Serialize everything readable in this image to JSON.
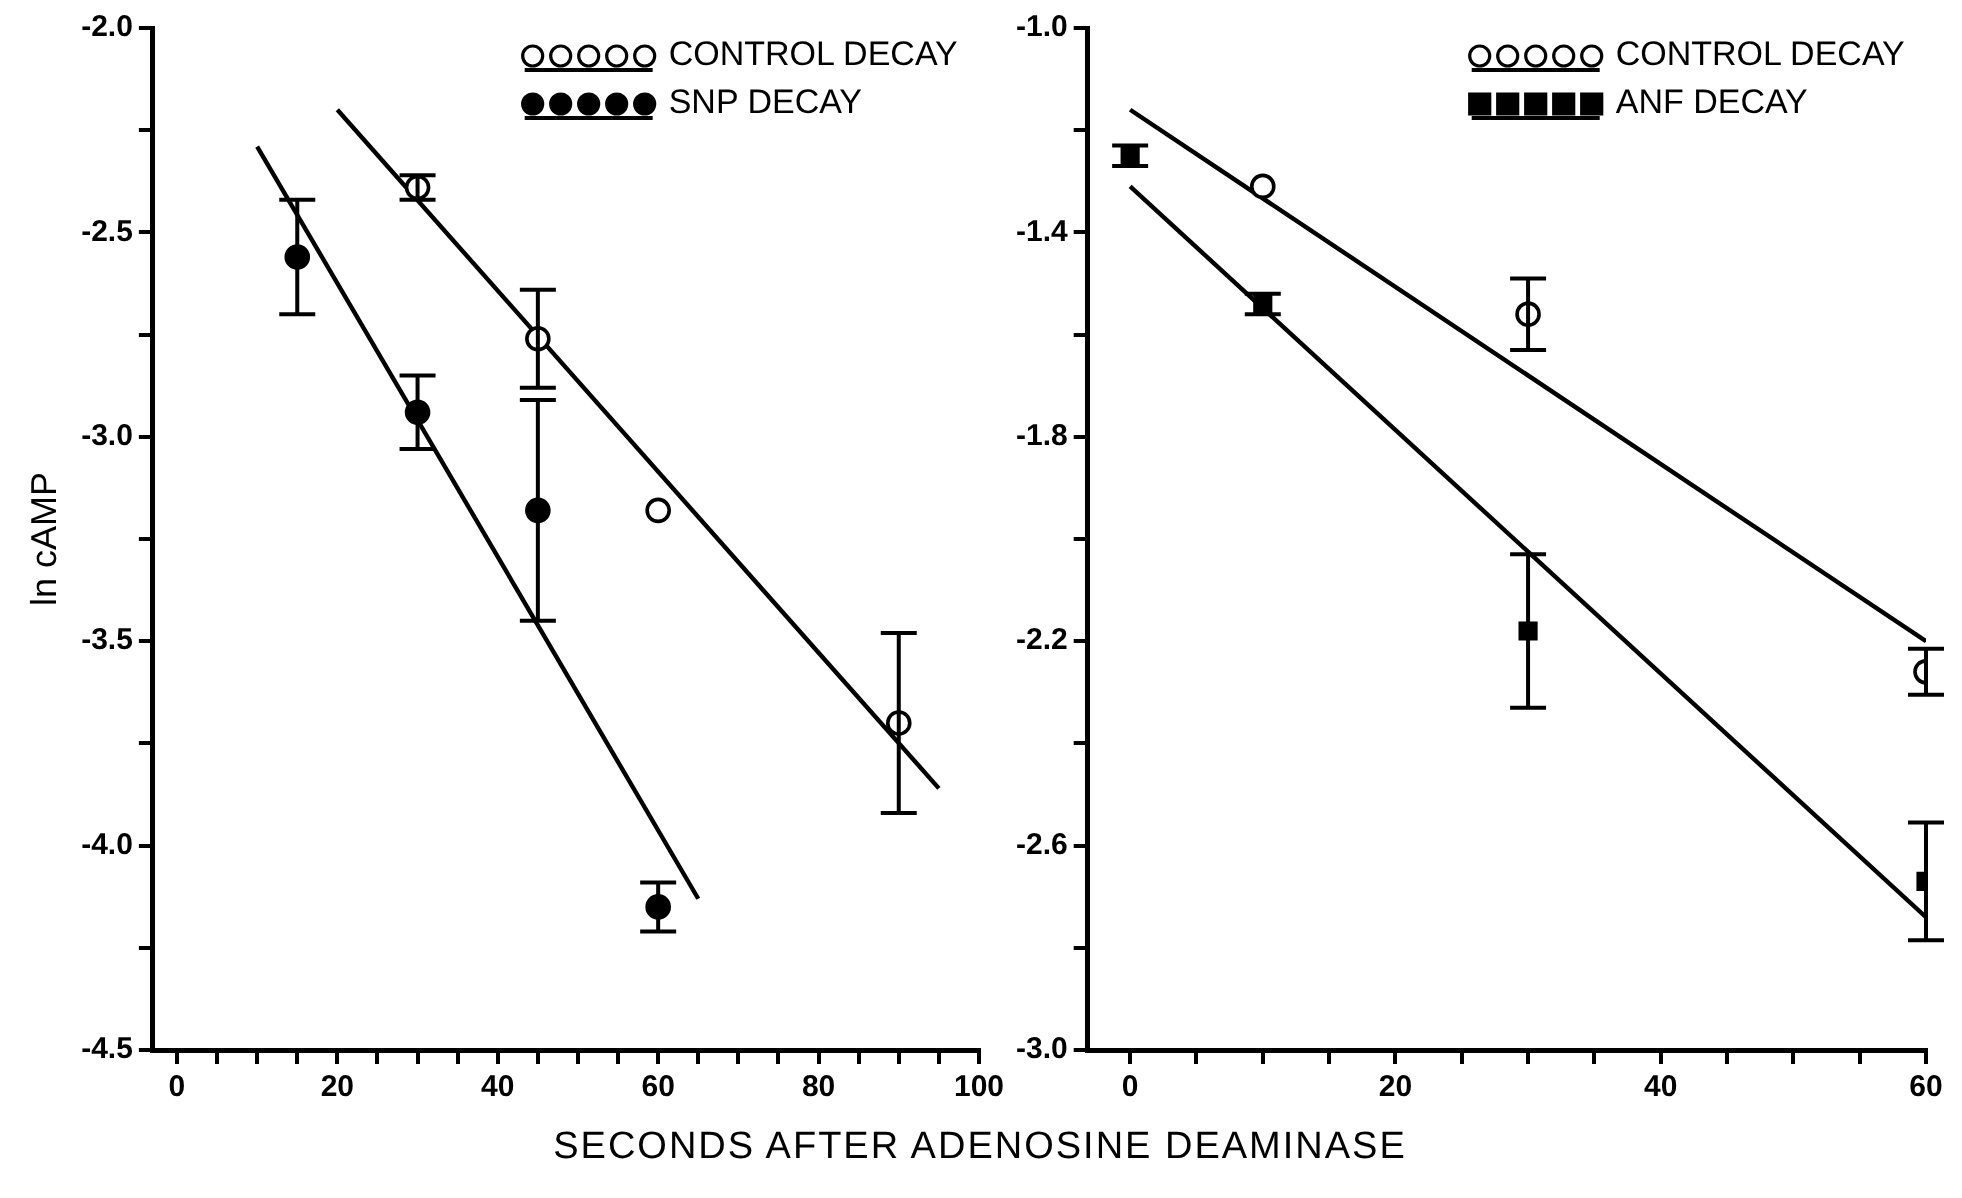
{
  "chart_data": [
    {
      "type": "scatter",
      "xlabel": "SECONDS AFTER ADENOSINE DEAMINASE",
      "ylabel": "ln cAMP",
      "xlim": [
        -3,
        100
      ],
      "ylim": [
        -4.5,
        -2.0
      ],
      "xticks": [
        0,
        {
          "value": 5,
          "label": null
        },
        {
          "value": 10,
          "label": null
        },
        {
          "value": 15,
          "label": null
        },
        20,
        {
          "value": 25,
          "label": null
        },
        {
          "value": 30,
          "label": null
        },
        {
          "value": 35,
          "label": null
        },
        40,
        {
          "value": 45,
          "label": null
        },
        {
          "value": 50,
          "label": null
        },
        {
          "value": 55,
          "label": null
        },
        60,
        {
          "value": 65,
          "label": null
        },
        {
          "value": 70,
          "label": null
        },
        {
          "value": 75,
          "label": null
        },
        80,
        {
          "value": 85,
          "label": null
        },
        {
          "value": 90,
          "label": null
        },
        {
          "value": 95,
          "label": null
        },
        100
      ],
      "yticks": [
        {
          "value": -4.5,
          "label": "-4.5"
        },
        {
          "value": -4.25,
          "label": null
        },
        {
          "value": -4.0,
          "label": "-4.0"
        },
        {
          "value": -3.75,
          "label": null
        },
        {
          "value": -3.5,
          "label": "-3.5"
        },
        {
          "value": -3.25,
          "label": null
        },
        {
          "value": -3.0,
          "label": "-3.0"
        },
        {
          "value": -2.75,
          "label": null
        },
        {
          "value": -2.5,
          "label": "-2.5"
        },
        {
          "value": -2.25,
          "label": null
        },
        {
          "value": -2.0,
          "label": "-2.0"
        }
      ],
      "grid": false,
      "legend": "top right",
      "series": [
        {
          "name": "CONTROL DECAY",
          "color": "#000000",
          "marker": "circle",
          "x": [
            30,
            45,
            60,
            90
          ],
          "values": [
            -2.39,
            -2.76,
            -3.18,
            -3.7
          ],
          "errors": [
            0.03,
            0.12,
            null,
            0.22
          ]
        },
        {
          "name": "SNP DECAY",
          "color": "#000000",
          "marker": "circle",
          "x": [
            15,
            30,
            45,
            60
          ],
          "values": [
            -2.56,
            -2.94,
            -3.18,
            -4.15
          ],
          "errors": [
            0.14,
            0.09,
            0.27,
            0.06
          ]
        },
        {
          "type": "line",
          "color": "#000000",
          "marker": "none",
          "x": [
            20,
            95
          ],
          "values": [
            -2.2,
            -3.86
          ]
        },
        {
          "type": "line",
          "color": "#000000",
          "marker": "none",
          "x": [
            10,
            65
          ],
          "values": [
            -2.29,
            -4.13
          ]
        }
      ]
    },
    {
      "type": "scatter",
      "xlim": [
        -3.2,
        60
      ],
      "ylim": [
        -3.0,
        -1.0
      ],
      "xticks": [
        0,
        {
          "value": 5,
          "label": null
        },
        {
          "value": 10,
          "label": null
        },
        {
          "value": 15,
          "label": null
        },
        20,
        {
          "value": 25,
          "label": null
        },
        {
          "value": 30,
          "label": null
        },
        {
          "value": 35,
          "label": null
        },
        40,
        {
          "value": 45,
          "label": null
        },
        {
          "value": 50,
          "label": null
        },
        {
          "value": 55,
          "label": null
        },
        60
      ],
      "yticks": [
        {
          "value": -3.0,
          "label": "-3.0"
        },
        {
          "value": -2.8,
          "label": null
        },
        {
          "value": -2.6,
          "label": "-2.6"
        },
        {
          "value": -2.4,
          "label": null
        },
        {
          "value": -2.2,
          "label": "-2.2"
        },
        {
          "value": -2.0,
          "label": null
        },
        {
          "value": -1.8,
          "label": "-1.8"
        },
        {
          "value": -1.6,
          "label": null
        },
        {
          "value": -1.4,
          "label": "-1.4"
        },
        {
          "value": -1.2,
          "label": null
        },
        {
          "value": -1.0,
          "label": "-1.0"
        }
      ],
      "grid": false,
      "legend": "top right",
      "series": [
        {
          "name": "CONTROL DECAY",
          "color": "#000000",
          "marker": "circle",
          "x": [
            10,
            30,
            60
          ],
          "values": [
            -1.31,
            -1.56,
            -2.26
          ],
          "errors": [
            null,
            0.07,
            0.045
          ]
        },
        {
          "name": "ANF DECAY",
          "color": "#000000",
          "marker": "square",
          "x": [
            0,
            10,
            30,
            60
          ],
          "values": [
            -1.25,
            -1.54,
            -2.18,
            -2.67
          ],
          "errors": [
            0.02,
            0.02,
            0.15,
            0.115
          ]
        },
        {
          "type": "line",
          "color": "#000000",
          "marker": "none",
          "x": [
            0,
            60
          ],
          "values": [
            -1.16,
            -2.2
          ]
        },
        {
          "type": "line",
          "color": "#000000",
          "marker": "none",
          "x": [
            0,
            60
          ],
          "values": [
            -1.31,
            -2.74
          ]
        }
      ]
    }
  ]
}
